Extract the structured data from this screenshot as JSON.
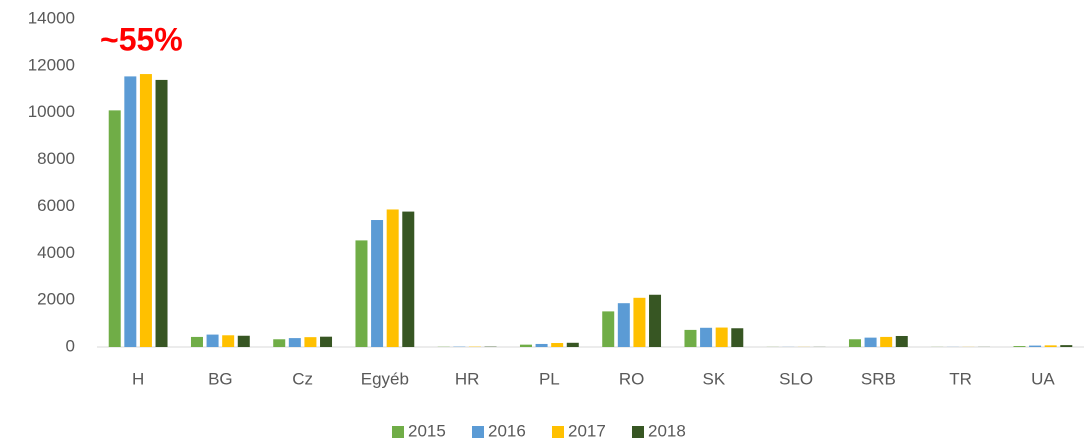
{
  "chart_data": {
    "type": "bar",
    "annotation": "~55%",
    "annotation_color": "#ff0000",
    "categories": [
      "H",
      "BG",
      "Cz",
      "Egyéb",
      "HR",
      "PL",
      "RO",
      "SK",
      "SLO",
      "SRB",
      "TR",
      "UA"
    ],
    "series": [
      {
        "name": "2015",
        "color": "#70ad47",
        "values": [
          10100,
          430,
          330,
          4550,
          10,
          100,
          1520,
          730,
          5,
          330,
          5,
          40
        ]
      },
      {
        "name": "2016",
        "color": "#5b9bd5",
        "values": [
          11550,
          530,
          380,
          5420,
          15,
          130,
          1870,
          820,
          5,
          400,
          5,
          60
        ]
      },
      {
        "name": "2017",
        "color": "#ffc000",
        "values": [
          11650,
          500,
          420,
          5870,
          15,
          170,
          2100,
          830,
          5,
          430,
          5,
          70
        ]
      },
      {
        "name": "2018",
        "color": "#375623",
        "values": [
          11400,
          480,
          440,
          5780,
          15,
          180,
          2230,
          800,
          5,
          470,
          5,
          80
        ]
      }
    ],
    "ylim": [
      0,
      14000
    ],
    "yticks": [
      0,
      2000,
      4000,
      6000,
      8000,
      10000,
      12000,
      14000
    ],
    "grid": false,
    "legend": "bottom"
  }
}
